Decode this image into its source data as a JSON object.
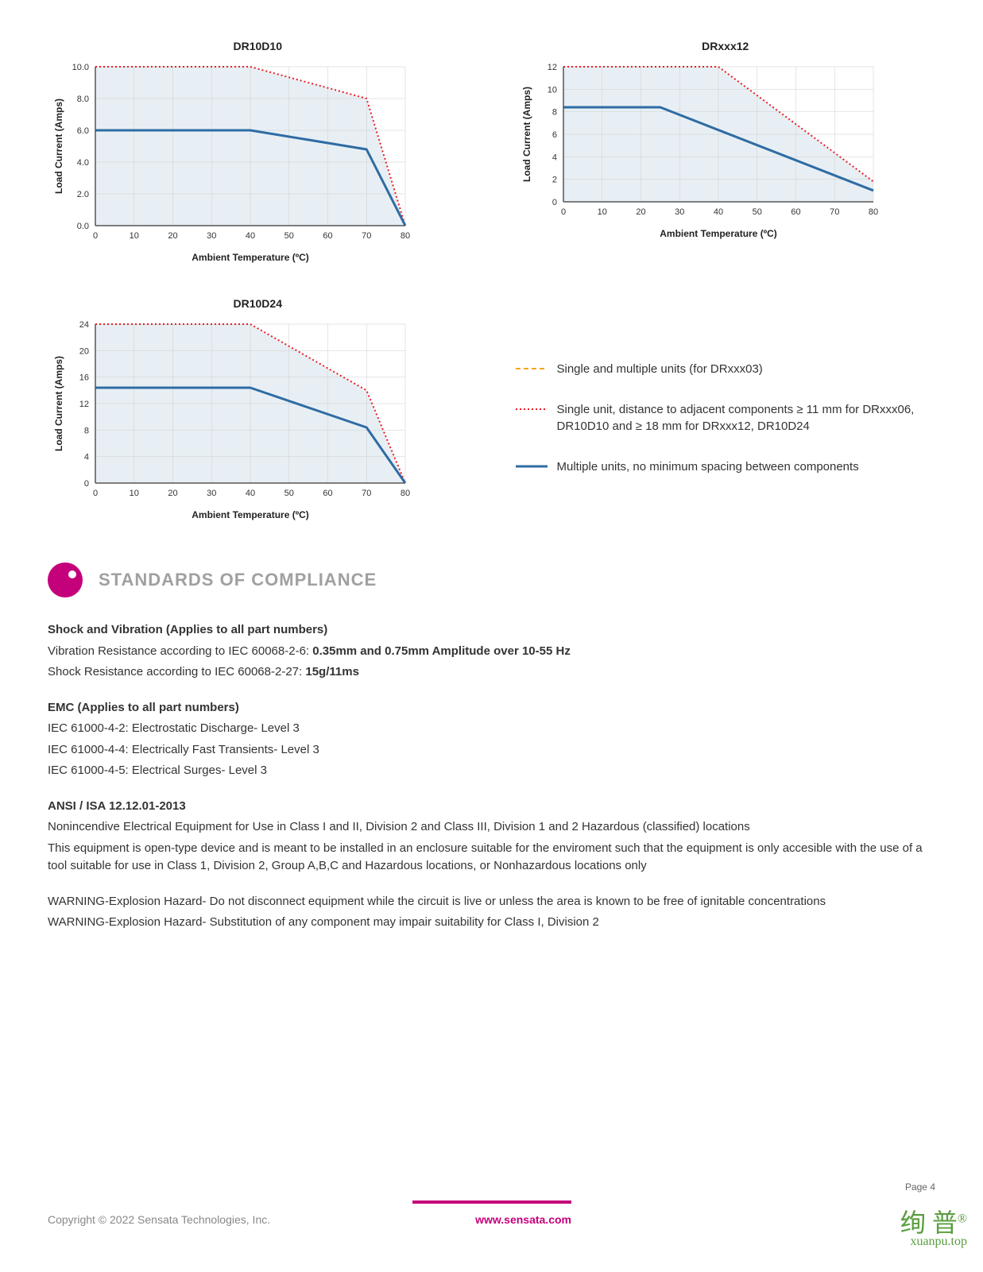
{
  "charts": {
    "dr10d10": {
      "title": "DR10D10",
      "xlabel": "Ambient Temperature (ºC)",
      "ylabel": "Load Current (Amps)",
      "xlim": [
        0,
        80
      ],
      "ylim": [
        0,
        10
      ],
      "xtick_step": 10,
      "ytick_step": 2,
      "ytick_format": "decimal1",
      "background_color": "#ffffff",
      "grid_color": "#cccccc",
      "fill_color": "#e8eff4",
      "axis_color": "#555555",
      "title_fontsize": 14,
      "label_fontsize": 12,
      "tick_fontsize": 11,
      "series": [
        {
          "name": "single",
          "color": "#ed1c24",
          "dash": "2,3",
          "width": 2,
          "points": [
            [
              0,
              10
            ],
            [
              40,
              10
            ],
            [
              70,
              8
            ],
            [
              80,
              0
            ]
          ]
        },
        {
          "name": "multiple",
          "color": "#2e6ca4",
          "dash": "none",
          "width": 3,
          "points": [
            [
              0,
              6
            ],
            [
              40,
              6
            ],
            [
              70,
              4.8
            ],
            [
              80,
              0
            ]
          ]
        }
      ]
    },
    "drxxx12": {
      "title": "DRxxx12",
      "xlabel": "Ambient Temperature (ºC)",
      "ylabel": "Load Current (Amps)",
      "xlim": [
        0,
        80
      ],
      "ylim": [
        0,
        12
      ],
      "xtick_step": 10,
      "ytick_step": 2,
      "ytick_format": "int",
      "background_color": "#ffffff",
      "grid_color": "#cccccc",
      "fill_color": "#e8eff4",
      "axis_color": "#555555",
      "title_fontsize": 14,
      "label_fontsize": 12,
      "tick_fontsize": 11,
      "series": [
        {
          "name": "single",
          "color": "#ed1c24",
          "dash": "2,3",
          "width": 2,
          "points": [
            [
              0,
              12
            ],
            [
              40,
              12
            ],
            [
              80,
              1.8
            ]
          ]
        },
        {
          "name": "multiple",
          "color": "#2e6ca4",
          "dash": "none",
          "width": 3,
          "points": [
            [
              0,
              8.4
            ],
            [
              25,
              8.4
            ],
            [
              80,
              1
            ]
          ]
        }
      ]
    },
    "dr10d24": {
      "title": "DR10D24",
      "xlabel": "Ambient Temperature (ºC)",
      "ylabel": "Load Current (Amps)",
      "xlim": [
        0,
        80
      ],
      "ylim": [
        0,
        24
      ],
      "xtick_step": 10,
      "ytick_step": 4,
      "ytick_format": "int",
      "background_color": "#ffffff",
      "grid_color": "#cccccc",
      "fill_color": "#e8eff4",
      "axis_color": "#555555",
      "title_fontsize": 14,
      "label_fontsize": 12,
      "tick_fontsize": 11,
      "series": [
        {
          "name": "single",
          "color": "#ed1c24",
          "dash": "2,3",
          "width": 2,
          "points": [
            [
              0,
              24
            ],
            [
              40,
              24
            ],
            [
              70,
              14
            ],
            [
              80,
              0
            ]
          ]
        },
        {
          "name": "multiple",
          "color": "#2e6ca4",
          "dash": "none",
          "width": 3,
          "points": [
            [
              0,
              14.4
            ],
            [
              40,
              14.4
            ],
            [
              70,
              8.4
            ],
            [
              80,
              0
            ]
          ]
        }
      ]
    }
  },
  "legend": {
    "items": [
      {
        "color": "#f5a623",
        "dash": "6,4",
        "width": 2,
        "text": "Single and multiple units (for DRxxx03)"
      },
      {
        "color": "#ed1c24",
        "dash": "2,3",
        "width": 2,
        "text": "Single unit, distance to adjacent components ≥ 11 mm for DRxxx06, DR10D10 and ≥ 18 mm for DRxxx12, DR10D24"
      },
      {
        "color": "#2e6ca4",
        "dash": "none",
        "width": 3,
        "text": "Multiple units, no minimum spacing between components"
      }
    ]
  },
  "section": {
    "title": "STANDARDS OF COMPLIANCE",
    "dot_color": "#c4007a"
  },
  "compliance": {
    "shock_heading": "Shock and Vibration (Applies to all part numbers)",
    "shock_line1_pre": "Vibration Resistance according to IEC 60068-2-6: ",
    "shock_line1_bold": "0.35mm and 0.75mm Amplitude over 10-55 Hz",
    "shock_line2_pre": "Shock Resistance according to IEC 60068-2-27: ",
    "shock_line2_bold": "15g/11ms",
    "emc_heading": "EMC (Applies to all part numbers)",
    "emc_line1": "IEC 61000-4-2: Electrostatic Discharge- Level 3",
    "emc_line2": "IEC 61000-4-4: Electrically Fast Transients- Level 3",
    "emc_line3": "IEC 61000-4-5: Electrical Surges- Level 3",
    "ansi_heading": "ANSI / ISA 12.12.01-2013",
    "ansi_line1": "Nonincendive Electrical Equipment for Use in Class I and II, Division 2 and Class III, Division 1 and 2 Hazardous (classified) locations",
    "ansi_line2": "This equipment is open-type device and is meant to be installed in an enclosure suitable for the enviroment such that the equipment is only accesible with the use of a tool suitable for use in Class 1, Division 2, Group A,B,C and Hazardous locations, or Nonhazardous locations only",
    "warn_line1": "WARNING-Explosion Hazard- Do not disconnect equipment while the circuit is live or unless the area is known to be free of ignitable concentrations",
    "warn_line2": "WARNING-Explosion Hazard- Substitution of any component may impair suitability for Class I, Division 2"
  },
  "footer": {
    "page_num": "Page 4",
    "copyright": "Copyright © 2022 Sensata Technologies, Inc.",
    "url": "www.sensata.com",
    "accent_color": "#c4007a"
  },
  "watermark": {
    "main": "绚 普",
    "sup": "®",
    "sub": "xuanpu.top",
    "color": "#5a9e3d"
  }
}
